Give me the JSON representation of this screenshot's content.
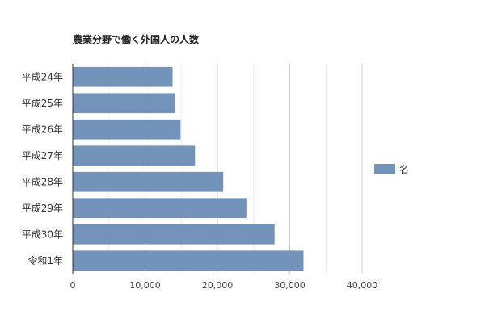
{
  "chart_data": {
    "type": "bar",
    "orientation": "horizontal",
    "title": "農業分野で働く外国人の人数",
    "xlabel": "",
    "ylabel": "",
    "categories": [
      "平成24年",
      "平成25年",
      "平成26年",
      "平成27年",
      "平成28年",
      "平成29年",
      "平成30年",
      "令和1年"
    ],
    "series": [
      {
        "name": "名",
        "color": "#7393ba",
        "values": [
          13800,
          14100,
          14900,
          16900,
          20800,
          24000,
          27900,
          31900
        ]
      }
    ],
    "xlim": [
      0,
      40000
    ],
    "xticks": [
      0,
      10000,
      20000,
      30000,
      40000
    ],
    "xtick_labels": [
      "0",
      "10,000",
      "20,000",
      "30,000",
      "40,000"
    ],
    "grid": true,
    "legend_position": "right"
  }
}
